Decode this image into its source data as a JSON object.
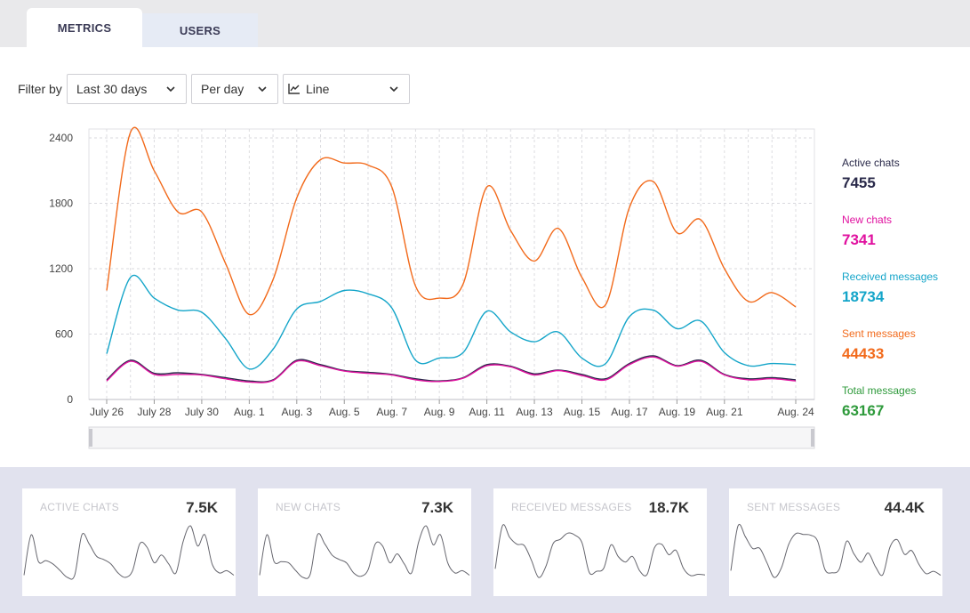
{
  "tabs": [
    {
      "label": "METRICS",
      "active": true
    },
    {
      "label": "USERS",
      "active": false
    }
  ],
  "filter": {
    "label": "Filter by",
    "range": "Last 30 days",
    "period": "Per day",
    "chart_type": "Line"
  },
  "legend": [
    {
      "label": "Active chats",
      "value": "7455",
      "color": "#2a2a4a"
    },
    {
      "label": "New chats",
      "value": "7341",
      "color": "#e0119f"
    },
    {
      "label": "Received messages",
      "value": "18734",
      "color": "#14a5c9"
    },
    {
      "label": "Sent messages",
      "value": "44433",
      "color": "#f26a1b"
    },
    {
      "label": "Total messages",
      "value": "63167",
      "color": "#2e9a3b"
    }
  ],
  "cards": [
    {
      "title": "ACTIVE CHATS",
      "value": "7.5K"
    },
    {
      "title": "NEW CHATS",
      "value": "7.3K"
    },
    {
      "title": "RECEIVED MESSAGES",
      "value": "18.7K"
    },
    {
      "title": "SENT MESSAGES",
      "value": "44.4K"
    }
  ],
  "chart_data": {
    "type": "line",
    "title": "",
    "xlabel": "",
    "ylabel": "",
    "ylim": [
      0,
      2400
    ],
    "yticks": [
      0,
      600,
      1200,
      1800,
      2400
    ],
    "x_tick_labels": [
      "July 26",
      "July 28",
      "July 30",
      "Aug. 1",
      "Aug. 3",
      "Aug. 5",
      "Aug. 7",
      "Aug. 9",
      "Aug. 11",
      "Aug. 13",
      "Aug. 15",
      "Aug. 17",
      "Aug. 19",
      "Aug. 21",
      "Aug. 24"
    ],
    "x": [
      "July 26",
      "July 27",
      "July 28",
      "July 29",
      "July 30",
      "July 31",
      "Aug. 1",
      "Aug. 2",
      "Aug. 3",
      "Aug. 4",
      "Aug. 5",
      "Aug. 6",
      "Aug. 7",
      "Aug. 8",
      "Aug. 9",
      "Aug. 10",
      "Aug. 11",
      "Aug. 12",
      "Aug. 13",
      "Aug. 14",
      "Aug. 15",
      "Aug. 16",
      "Aug. 17",
      "Aug. 18",
      "Aug. 19",
      "Aug. 20",
      "Aug. 21",
      "Aug. 22",
      "Aug. 23",
      "Aug. 24"
    ],
    "grid": true,
    "series": [
      {
        "name": "Sent messages",
        "color": "#f26a1b",
        "values": [
          1000,
          2450,
          2100,
          1720,
          1720,
          1250,
          780,
          1100,
          1850,
          2200,
          2170,
          2150,
          1950,
          1040,
          930,
          1060,
          1950,
          1550,
          1270,
          1570,
          1120,
          870,
          1760,
          2000,
          1530,
          1650,
          1200,
          900,
          980,
          850
        ]
      },
      {
        "name": "Received messages",
        "color": "#14a5c9",
        "values": [
          420,
          1120,
          930,
          820,
          800,
          560,
          280,
          460,
          830,
          900,
          1000,
          970,
          840,
          360,
          380,
          430,
          810,
          620,
          530,
          620,
          380,
          330,
          760,
          820,
          650,
          720,
          430,
          310,
          330,
          320
        ]
      },
      {
        "name": "Active chats",
        "color": "#2a2a4a",
        "values": [
          180,
          360,
          240,
          245,
          230,
          200,
          170,
          180,
          360,
          320,
          265,
          250,
          230,
          190,
          170,
          200,
          320,
          305,
          235,
          270,
          230,
          190,
          330,
          400,
          310,
          360,
          230,
          190,
          200,
          180
        ]
      },
      {
        "name": "New chats",
        "color": "#e0119f",
        "values": [
          170,
          350,
          230,
          230,
          225,
          190,
          160,
          175,
          350,
          310,
          260,
          240,
          225,
          180,
          165,
          195,
          310,
          300,
          225,
          265,
          220,
          180,
          320,
          390,
          305,
          350,
          225,
          180,
          190,
          170
        ]
      }
    ]
  }
}
